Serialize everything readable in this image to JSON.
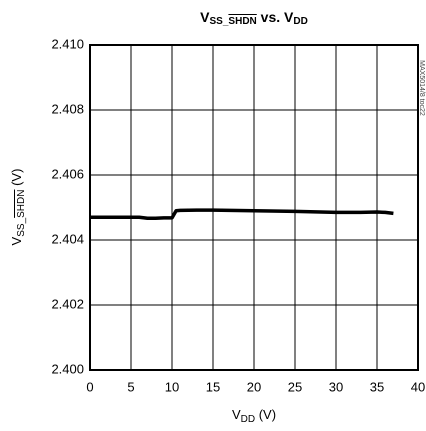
{
  "chart_data": {
    "type": "line",
    "title": [
      "V",
      "SS_",
      "SHDN",
      " vs. V",
      "DD"
    ],
    "x_label": [
      "V",
      "DD",
      " (V)"
    ],
    "y_label": [
      "V",
      "SS_",
      "SHDN",
      " (V)"
    ],
    "annotation": "MAX5014/8 toc22",
    "x": [
      0,
      2,
      4,
      6,
      7,
      8,
      9,
      10,
      10.5,
      11,
      13,
      15,
      17,
      20,
      25,
      30,
      33,
      35,
      36,
      37
    ],
    "series": [
      {
        "name": "VSS_SHDN",
        "color": "#000000",
        "values": [
          2.4047,
          2.4047,
          2.4047,
          2.4047,
          2.40467,
          2.40467,
          2.40468,
          2.40468,
          2.4049,
          2.40491,
          2.40492,
          2.40492,
          2.40491,
          2.4049,
          2.40488,
          2.40485,
          2.40485,
          2.40486,
          2.40485,
          2.40482
        ]
      }
    ],
    "xlim": [
      0,
      40
    ],
    "xticks": [
      0,
      5,
      10,
      15,
      20,
      25,
      30,
      35,
      40
    ],
    "ylim": [
      2.4,
      2.41
    ],
    "yticks": [
      {
        "value": 2.4,
        "label": "2.400"
      },
      2.402,
      2.404,
      2.406,
      2.408,
      {
        "value": 2.41,
        "label": "2.410"
      }
    ],
    "grid": true
  }
}
